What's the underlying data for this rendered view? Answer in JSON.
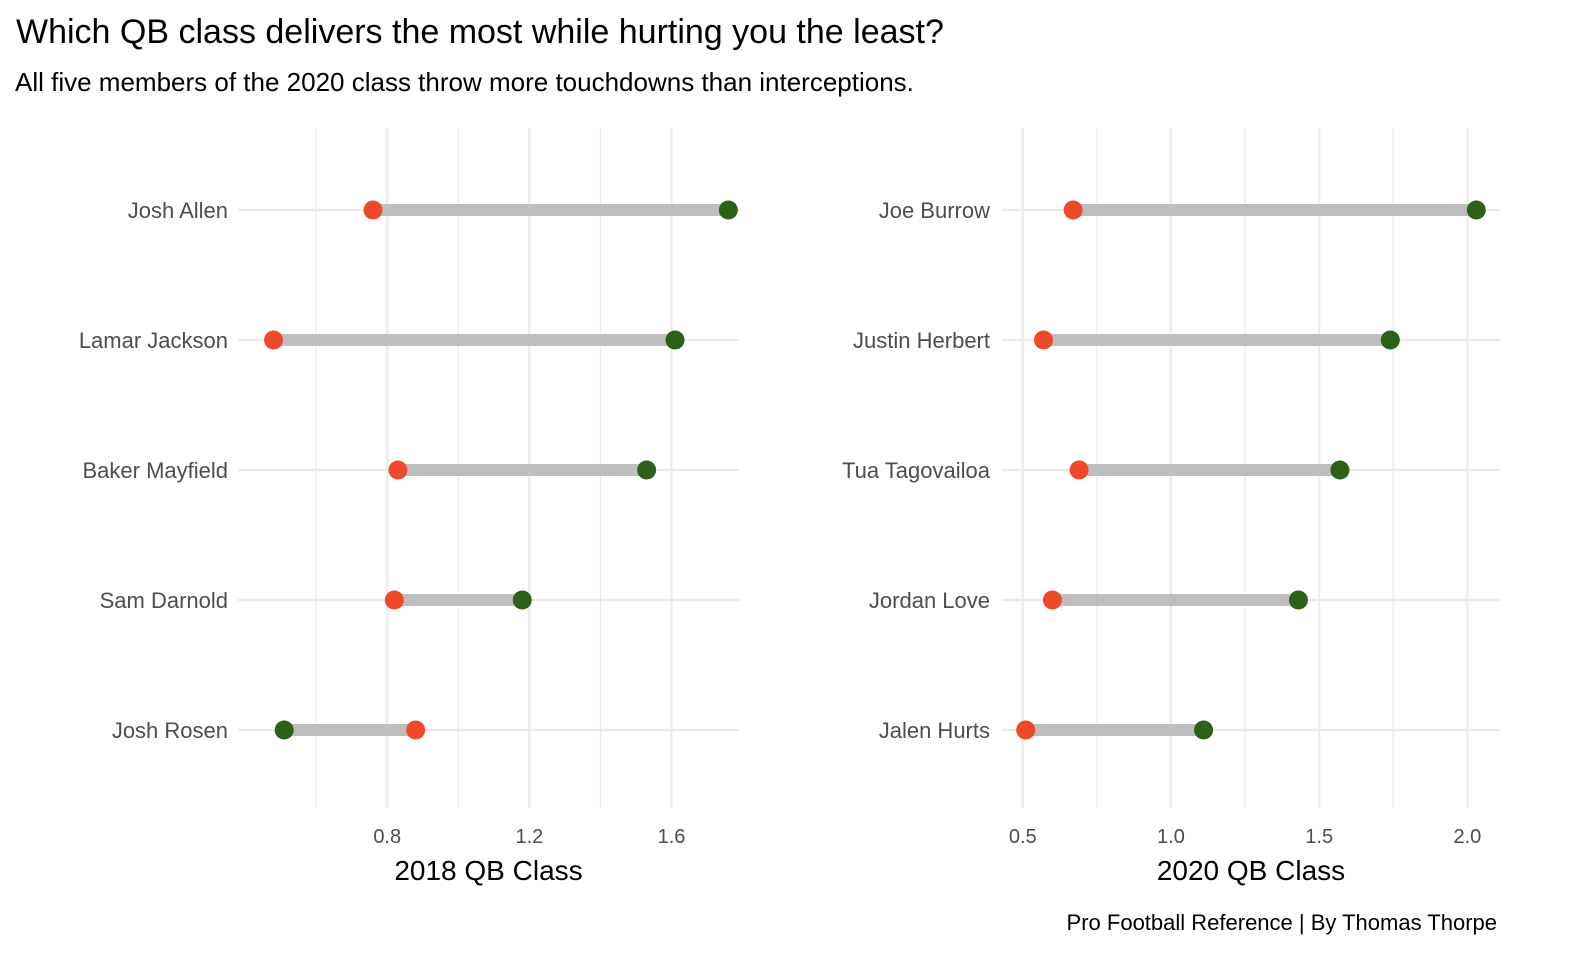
{
  "title": "Which QB class delivers the most while hurting you the least?",
  "subtitle": "All five members of the 2020 class throw more touchdowns than interceptions.",
  "caption": "Pro Football Reference | By Thomas Thorpe",
  "colors": {
    "td": "#2d6018",
    "int": "#ee4a2a",
    "segment": "#bebebe",
    "grid": "#ebebeb"
  },
  "chart_data": [
    {
      "type": "dumbbell",
      "xlabel": "2018 QB Class",
      "xlim": [
        0.38,
        1.79
      ],
      "ticks": [
        0.8,
        1.2,
        1.6
      ],
      "tick_labels": [
        "0.8",
        "1.2",
        "1.6"
      ],
      "minor_ticks": [
        0.6,
        1.0,
        1.4,
        1.8
      ],
      "categories": [
        "Josh Allen",
        "Lamar Jackson",
        "Baker Mayfield",
        "Sam Darnold",
        "Josh Rosen"
      ],
      "series": [
        {
          "role": "int",
          "values": [
            0.76,
            0.48,
            0.83,
            0.82,
            0.88
          ]
        },
        {
          "role": "td",
          "values": [
            1.76,
            1.61,
            1.53,
            1.18,
            0.51
          ]
        }
      ]
    },
    {
      "type": "dumbbell",
      "xlabel": "2020 QB Class",
      "xlim": [
        0.43,
        2.11
      ],
      "ticks": [
        0.5,
        1.0,
        1.5,
        2.0
      ],
      "tick_labels": [
        "0.5",
        "1.0",
        "1.5",
        "2.0"
      ],
      "minor_ticks": [
        0.75,
        1.25,
        1.75
      ],
      "categories": [
        "Joe Burrow",
        "Justin Herbert",
        "Tua Tagovailoa",
        "Jordan Love",
        "Jalen Hurts"
      ],
      "series": [
        {
          "role": "int",
          "values": [
            0.67,
            0.57,
            0.69,
            0.6,
            0.51
          ]
        },
        {
          "role": "td",
          "values": [
            2.03,
            1.74,
            1.57,
            1.43,
            1.11
          ]
        }
      ]
    }
  ]
}
